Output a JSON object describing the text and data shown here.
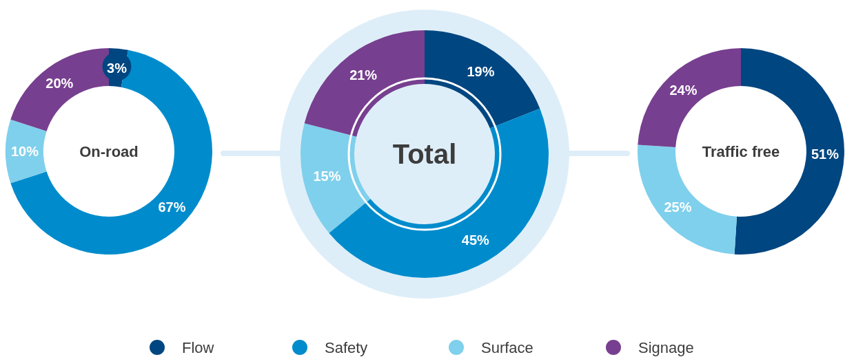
{
  "chart_data": {
    "type": "donut",
    "categories": [
      "Flow",
      "Safety",
      "Surface",
      "Signage"
    ],
    "colors": [
      "#004680",
      "#008ccc",
      "#7fd0ec",
      "#773f8f"
    ],
    "legend": "bottom",
    "series": [
      {
        "name": "On-road",
        "values": [
          3,
          67,
          10,
          20
        ],
        "value_labels": [
          "3%",
          "67%",
          "10%",
          "20%"
        ]
      },
      {
        "name": "Total",
        "values": [
          19,
          45,
          15,
          21
        ],
        "value_labels": [
          "19%",
          "45%",
          "15%",
          "21%"
        ]
      },
      {
        "name": "Traffic free",
        "values": [
          51,
          null,
          25,
          24
        ],
        "value_labels": [
          "51%",
          null,
          "25%",
          "24%"
        ]
      }
    ]
  }
}
